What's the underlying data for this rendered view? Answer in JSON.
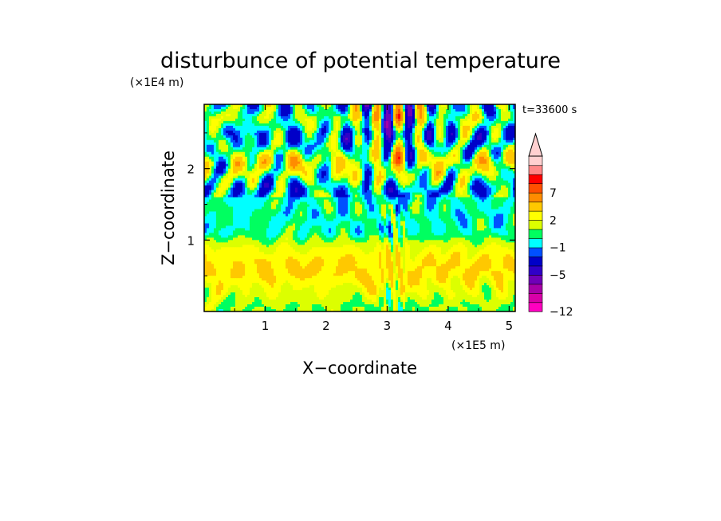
{
  "chart_data": {
    "type": "heatmap",
    "title": "disturbunce of potential temperature",
    "xlabel": "X−coordinate",
    "ylabel": "Z−coordinate",
    "x_unit": "(×1E5 m)",
    "y_unit": "(×1E4 m)",
    "time_label": "t=33600 s",
    "xlim": [
      0,
      5.1
    ],
    "ylim": [
      0,
      2.9
    ],
    "x_ticks": [
      1,
      2,
      3,
      4,
      5
    ],
    "y_ticks": [
      1,
      2
    ],
    "colorbar": {
      "levels": [
        -12,
        -10,
        -8,
        -7,
        -5,
        -4,
        -2,
        -1,
        0,
        1,
        2,
        3,
        5,
        7,
        8,
        10,
        12
      ],
      "labeled_levels": [
        -12,
        -5,
        -1,
        2,
        7
      ],
      "colors": [
        "#ff00c0",
        "#d800a8",
        "#a800a8",
        "#7000b8",
        "#3000c8",
        "#0000c8",
        "#0050ff",
        "#00ffff",
        "#00ff60",
        "#dcff00",
        "#ffff00",
        "#ffc800",
        "#ff8c00",
        "#ff5000",
        "#ff0000",
        "#ff8888",
        "#ffd0d0"
      ],
      "extend": "max"
    },
    "field_description_levels": {
      "rows_z": [
        0.1,
        0.3,
        0.5,
        0.7,
        0.9,
        1.1,
        1.3,
        1.5,
        1.7,
        1.9,
        2.1,
        2.3,
        2.5,
        2.7,
        2.85
      ],
      "dominant_value": [
        1,
        2,
        3,
        3,
        2,
        0,
        0,
        0,
        -1,
        1,
        2,
        0,
        -1,
        1,
        0
      ]
    }
  }
}
